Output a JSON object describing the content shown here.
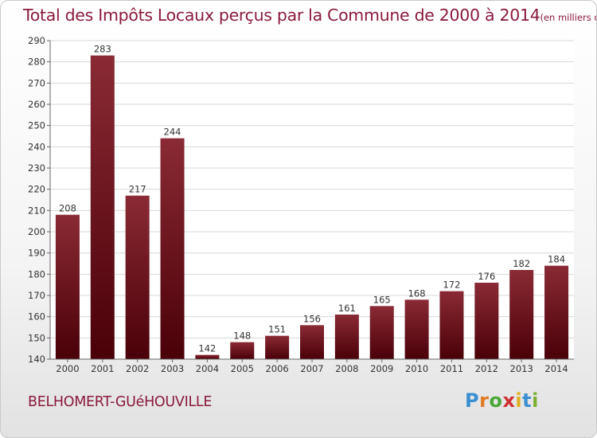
{
  "header": {
    "title": "Total des Impôts Locaux perçus par la Commune de 2000 à 2014",
    "unit": "(en milliers d'€)"
  },
  "footer": {
    "commune": "BELHOMERT-GUéHOUVILLE",
    "logo_letters": [
      "P",
      "r",
      "o",
      "x",
      "i",
      "t",
      "i"
    ],
    "logo_colors": [
      "#3a8fd0",
      "#e07a20",
      "#4aa838",
      "#d02f2f",
      "#e0b020",
      "#3a8fd0",
      "#7ab030"
    ]
  },
  "colors": {
    "bar_top": "#8a2a34",
    "bar_bottom": "#4a0008",
    "title": "#8b1a3c",
    "grid": "#d8d8d8",
    "axis": "#666666"
  },
  "chart_data": {
    "type": "bar",
    "categories": [
      "2000",
      "2001",
      "2002",
      "2003",
      "2004",
      "2005",
      "2006",
      "2007",
      "2008",
      "2009",
      "2010",
      "2011",
      "2012",
      "2013",
      "2014"
    ],
    "values": [
      208,
      283,
      217,
      244,
      142,
      148,
      151,
      156,
      161,
      165,
      168,
      172,
      176,
      182,
      184
    ],
    "title": "Total des Impôts Locaux perçus par la Commune de 2000 à 2014",
    "xlabel": "",
    "ylabel": "en milliers d'€",
    "ylim": [
      140,
      290
    ],
    "yticks": [
      140,
      150,
      160,
      170,
      180,
      190,
      200,
      210,
      220,
      230,
      240,
      250,
      260,
      270,
      280,
      290
    ],
    "grid": true
  }
}
